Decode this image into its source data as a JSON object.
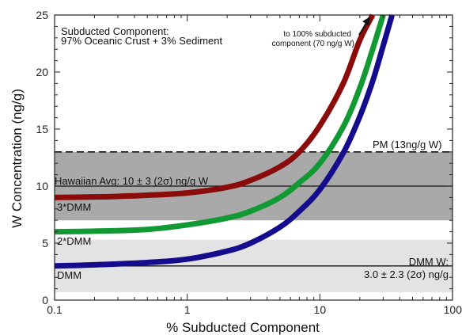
{
  "chart_data": {
    "type": "line",
    "xscale": "log",
    "xlim": [
      0.1,
      100
    ],
    "ylim": [
      0,
      25
    ],
    "xlabel": "% Subducted Component",
    "ylabel": "W Concentration (ng/g)",
    "x_ticks": [
      "0.1",
      "1",
      "10",
      "100"
    ],
    "y_ticks": [
      "0",
      "5",
      "10",
      "15",
      "20",
      "25"
    ],
    "grid": false,
    "annotations": {
      "subducted_title": "Subducted Component:",
      "subducted_detail": "97% Oceanic Crust + 3% Sediment",
      "arrow_line1": "to 100% subducted",
      "arrow_line2": "component (70 ng/g W)",
      "pm": "PM (13ng/g W)",
      "hawaiian": "Hawaiian Avg: 10 ± 3 (2σ) ng/g W",
      "dmm_w_line1": "DMM W:",
      "dmm_w_line2": "3.0 ± 2.3 (2σ) ng/g"
    },
    "reference_lines": [
      {
        "label": "PM",
        "y": 13,
        "style": "dashed"
      },
      {
        "label": "Hawaiian Avg",
        "y": 10,
        "style": "solid"
      },
      {
        "label": "DMM",
        "y": 3,
        "style": "solid"
      }
    ],
    "bands": [
      {
        "label": "Hawaiian Avg ± 2σ",
        "y_range": [
          7,
          13
        ],
        "color": "#a9a9a9"
      },
      {
        "label": "DMM ± 2σ",
        "y_range": [
          0.7,
          5.3
        ],
        "color": "#e3e3e3"
      }
    ],
    "series": [
      {
        "name": "3*DMM",
        "color": "#8b0a0a",
        "x": [
          0.1,
          0.2,
          0.3,
          0.5,
          1,
          2,
          3,
          5,
          7,
          10,
          15,
          20,
          25
        ],
        "y": [
          9.0,
          9.05,
          9.1,
          9.2,
          9.4,
          9.9,
          10.5,
          11.7,
          13.0,
          15.3,
          19.0,
          22.8,
          25.0
        ]
      },
      {
        "name": "2*DMM",
        "color": "#119933",
        "x": [
          0.1,
          0.2,
          0.5,
          1,
          2,
          3,
          5,
          7,
          10,
          15,
          20,
          25,
          30
        ],
        "y": [
          6.0,
          6.05,
          6.2,
          6.6,
          7.2,
          7.8,
          9.0,
          10.3,
          12.0,
          15.2,
          18.6,
          22.0,
          25.0
        ]
      },
      {
        "name": "DMM",
        "color": "#140c8c",
        "x": [
          0.1,
          0.2,
          0.5,
          1,
          2,
          3,
          5,
          7,
          10,
          15,
          20,
          25,
          30,
          35
        ],
        "y": [
          3.0,
          3.1,
          3.3,
          3.6,
          4.3,
          5.0,
          6.4,
          7.8,
          9.7,
          12.9,
          16.1,
          19.2,
          22.3,
          25.0
        ]
      }
    ]
  }
}
